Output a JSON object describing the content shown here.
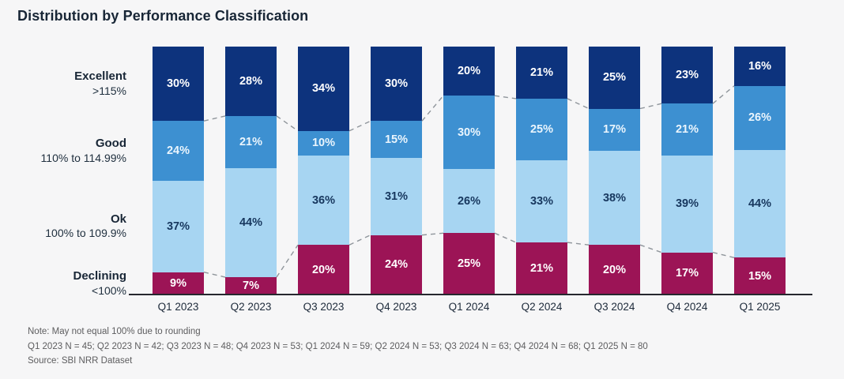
{
  "title": "Distribution by Performance Classification",
  "chart_data": {
    "type": "bar",
    "variant": "100%-stacked-column",
    "title": "Distribution by Performance Classification",
    "xlabel": "",
    "ylabel": "",
    "ylim": [
      0,
      100
    ],
    "grid": false,
    "legend_position": "left-side category labels",
    "value_suffix": "%",
    "categories": [
      "Q1 2023",
      "Q2 2023",
      "Q3 2023",
      "Q4 2023",
      "Q1 2024",
      "Q2 2024",
      "Q3 2024",
      "Q4 2024",
      "Q1 2025"
    ],
    "series": [
      {
        "name": "Excellent",
        "range": ">115%",
        "color": "#0d337d",
        "label_color": "#ffffff",
        "values": [
          30,
          28,
          34,
          30,
          20,
          21,
          25,
          23,
          16
        ]
      },
      {
        "name": "Good",
        "range": "110% to 114.99%",
        "color": "#3d90d1",
        "label_color": "#eaf5fd",
        "values": [
          24,
          21,
          10,
          15,
          30,
          25,
          17,
          21,
          26
        ]
      },
      {
        "name": "Ok",
        "range": "100% to 109.9%",
        "color": "#a7d5f2",
        "label_color": "#17375e",
        "values": [
          37,
          44,
          36,
          31,
          26,
          33,
          38,
          39,
          44
        ]
      },
      {
        "name": "Declining",
        "range": "<100%",
        "color": "#9c1456",
        "label_color": "#ffffff",
        "values": [
          9,
          7,
          20,
          24,
          25,
          21,
          20,
          17,
          15
        ]
      }
    ],
    "annotations": {
      "connector_style": "dashed gray lines across bar gaps",
      "connector_boundaries": [
        "Excellent/Good",
        "Ok/Declining"
      ]
    }
  },
  "footnotes": {
    "note": "Note: May not equal 100% due to rounding",
    "sample_sizes": "Q1 2023 N = 45; Q2 2023 N = 42; Q3 2023 N = 48; Q4 2023 N = 53; Q1 2024 N = 59; Q2 2024 N = 53; Q3 2024 N = 63; Q4 2024 N = 68; Q1 2025 N = 80",
    "source": "Source: SBI NRR Dataset"
  }
}
